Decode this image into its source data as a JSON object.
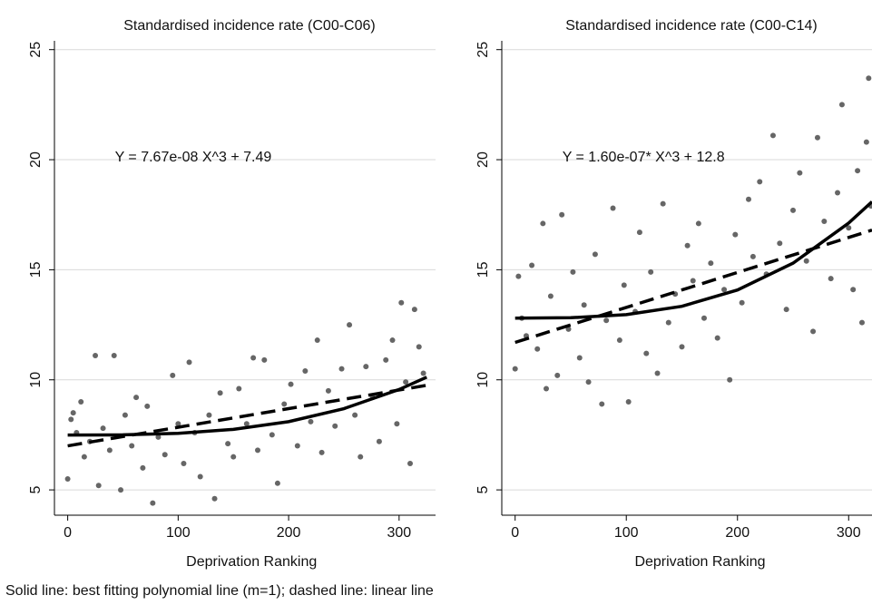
{
  "chart_data": [
    {
      "type": "scatter",
      "title": "Standardised incidence rate (C00-C06)",
      "xlabel": "Deprivation Ranking",
      "annotation": "Y = 7.67e-08 X^3 + 7.49",
      "xlim": [
        -12,
        333
      ],
      "ylim": [
        3.85,
        25.4
      ],
      "xticks": [
        0,
        100,
        200,
        300
      ],
      "yticks": [
        5,
        10,
        15,
        20,
        25
      ],
      "grid": true,
      "series": [
        {
          "mode": "points",
          "color": "#666666",
          "x": [
            0,
            3,
            5,
            8,
            12,
            15,
            20,
            25,
            28,
            32,
            38,
            42,
            48,
            52,
            58,
            62,
            68,
            72,
            77,
            82,
            88,
            95,
            100,
            105,
            110,
            115,
            120,
            128,
            133,
            138,
            145,
            150,
            155,
            162,
            168,
            172,
            178,
            185,
            190,
            196,
            202,
            208,
            215,
            220,
            226,
            230,
            236,
            242,
            248,
            255,
            260,
            265,
            270,
            276,
            282,
            288,
            294,
            298,
            302,
            306,
            310,
            314,
            318,
            322
          ],
          "values": [
            5.5,
            8.2,
            8.5,
            7.6,
            9,
            6.5,
            7.2,
            11.1,
            5.2,
            7.8,
            6.8,
            11.1,
            5,
            8.4,
            7,
            9.2,
            6,
            8.8,
            4.4,
            7.4,
            6.6,
            10.2,
            8,
            6.2,
            10.8,
            7.6,
            5.6,
            8.4,
            4.6,
            9.4,
            7.1,
            6.5,
            9.6,
            8,
            11,
            6.8,
            10.9,
            7.5,
            5.3,
            8.9,
            9.8,
            7,
            10.4,
            8.1,
            11.8,
            6.7,
            9.5,
            7.9,
            10.5,
            12.5,
            8.4,
            6.5,
            10.6,
            9.2,
            7.2,
            10.9,
            11.8,
            8,
            13.5,
            9.9,
            6.2,
            13.2,
            11.5,
            10.3
          ]
        },
        {
          "mode": "solid",
          "color": "#000000",
          "x": [
            0,
            50,
            100,
            150,
            200,
            250,
            300,
            325
          ],
          "values": [
            7.49,
            7.5,
            7.57,
            7.75,
            8.1,
            8.69,
            9.56,
            10.12
          ]
        },
        {
          "mode": "dashed",
          "color": "#000000",
          "x": [
            0,
            325
          ],
          "values": [
            7.0,
            9.75
          ]
        }
      ]
    },
    {
      "type": "scatter",
      "title": "Standardised incidence rate (C00-C14)",
      "xlabel": "Deprivation Ranking",
      "annotation": "Y = 1.60e-07* X^3 + 12.8",
      "xlim": [
        -12,
        321
      ],
      "ylim": [
        3.85,
        25.4
      ],
      "xticks": [
        0,
        100,
        200,
        300
      ],
      "yticks": [
        5,
        10,
        15,
        20,
        25
      ],
      "grid": true,
      "series": [
        {
          "mode": "points",
          "color": "#666666",
          "x": [
            0,
            3,
            6,
            10,
            15,
            20,
            25,
            28,
            32,
            38,
            42,
            48,
            52,
            58,
            62,
            66,
            72,
            78,
            82,
            88,
            94,
            98,
            102,
            108,
            112,
            118,
            122,
            128,
            133,
            138,
            144,
            150,
            155,
            160,
            165,
            170,
            176,
            182,
            188,
            193,
            198,
            204,
            210,
            214,
            220,
            226,
            232,
            238,
            244,
            250,
            256,
            262,
            268,
            272,
            278,
            284,
            290,
            294,
            300,
            304,
            308,
            312,
            316,
            318,
            320
          ],
          "values": [
            10.5,
            14.7,
            12.8,
            12,
            15.2,
            11.4,
            17.1,
            9.6,
            13.8,
            10.2,
            17.5,
            12.3,
            14.9,
            11,
            13.4,
            9.9,
            15.7,
            8.9,
            12.7,
            17.8,
            11.8,
            14.3,
            9,
            13.1,
            16.7,
            11.2,
            14.9,
            10.3,
            18,
            12.6,
            13.9,
            11.5,
            16.1,
            14.5,
            17.1,
            12.8,
            15.3,
            11.9,
            14.1,
            10,
            16.6,
            13.5,
            18.2,
            15.6,
            19,
            14.8,
            21.1,
            16.2,
            13.2,
            17.7,
            19.4,
            15.4,
            12.2,
            21,
            17.2,
            14.6,
            18.5,
            22.5,
            16.9,
            14.1,
            19.5,
            12.6,
            20.8,
            23.7,
            17.9
          ]
        },
        {
          "mode": "solid",
          "color": "#000000",
          "x": [
            0,
            50,
            100,
            150,
            200,
            250,
            300,
            321
          ],
          "values": [
            12.8,
            12.82,
            12.96,
            13.34,
            14.08,
            15.3,
            17.12,
            18.09
          ]
        },
        {
          "mode": "dashed",
          "color": "#000000",
          "x": [
            0,
            321
          ],
          "values": [
            11.7,
            16.8
          ]
        }
      ]
    }
  ],
  "footnote": "Solid line: best fitting polynomial line (m=1); dashed line: linear line"
}
